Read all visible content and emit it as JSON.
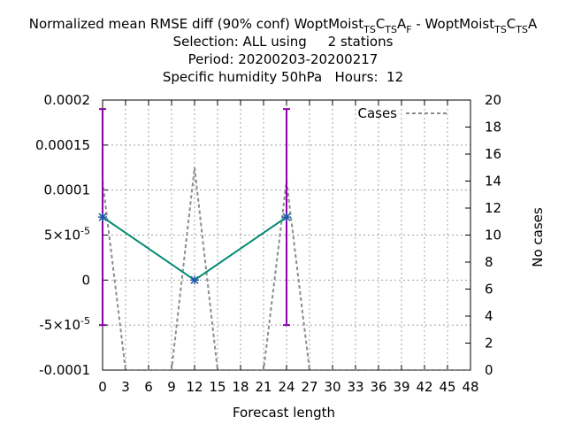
{
  "chart_data": {
    "type": "line",
    "title_lines": [
      "Normalized mean RMSE diff (90% conf) WoptMoist_TSC_TSA_F - WoptMoist_TSC_TSA",
      "Selection: ALL using     2 stations",
      "Period: 20200203-20200217",
      "Specific humidity 50hPa   Hours:  12"
    ],
    "title": {
      "prefix": "Normalized mean RMSE diff (90% conf) WoptMoist",
      "a_sub1": "T",
      "a_sub2": "S",
      "a_c": "C",
      "a_sub3": "T",
      "a_sub4": "S",
      "a_a": "A",
      "a_sub5": "F",
      "mid": " - WoptMoist",
      "b_sub1": "T",
      "b_sub2": "S",
      "b_c": "C",
      "b_sub3": "T",
      "b_sub4": "S",
      "b_a": "A",
      "line2": "Selection: ALL using     2 stations",
      "line3": "Period: 20200203-20200217",
      "line4": "Specific humidity 50hPa   Hours:  12"
    },
    "xlabel": "Forecast length",
    "ylabel_right": "No cases",
    "xlim": [
      0,
      48
    ],
    "ylim": [
      -0.0001,
      0.0002
    ],
    "y2lim": [
      0,
      20
    ],
    "x_ticks": [
      0,
      3,
      6,
      9,
      12,
      15,
      18,
      21,
      24,
      27,
      30,
      33,
      36,
      39,
      42,
      45,
      48
    ],
    "x_tick_labels": [
      "0",
      "3",
      "6",
      "9",
      "12",
      "15",
      "18",
      "21",
      "24",
      "27",
      "30",
      "33",
      "36",
      "39",
      "42",
      "45",
      "48"
    ],
    "y_ticks": [
      -0.0001,
      -5e-05,
      0,
      5e-05,
      0.0001,
      0.00015,
      0.0002
    ],
    "y_tick_labels": [
      {
        "text": "-0.0001"
      },
      {
        "text": "-5×10",
        "sup": "-5"
      },
      {
        "text": "0"
      },
      {
        "text": "5×10",
        "sup": "-5"
      },
      {
        "text": "0.0001"
      },
      {
        "text": "0.00015"
      },
      {
        "text": "0.0002"
      }
    ],
    "y2_ticks": [
      0,
      2,
      4,
      6,
      8,
      10,
      12,
      14,
      16,
      18,
      20
    ],
    "y2_tick_labels": [
      "0",
      "2",
      "4",
      "6",
      "8",
      "10",
      "12",
      "14",
      "16",
      "18",
      "20"
    ],
    "grid": true,
    "legend_position": "top-right",
    "series": [
      {
        "name": "RMSE diff",
        "x": [
          0,
          12,
          24
        ],
        "y": [
          7e-05,
          0.0,
          7e-05
        ],
        "error_low": [
          -5e-05,
          0.0,
          -5e-05
        ],
        "error_high": [
          0.00019,
          0.0,
          0.00019
        ],
        "color": "#008b72",
        "error_color": "#8b00a6"
      },
      {
        "name": "Cases",
        "axis": "y2",
        "x": [
          0,
          3,
          6,
          9,
          12,
          15,
          18,
          21,
          24,
          27,
          30,
          33,
          36,
          39,
          42,
          45,
          48
        ],
        "y": [
          14,
          0,
          0,
          0,
          15,
          0,
          0,
          0,
          14,
          0,
          0,
          0,
          0,
          0,
          0,
          0,
          0
        ],
        "color": "#8c8c8c",
        "dashed": true
      }
    ],
    "legend": [
      {
        "label": "Cases",
        "style": "dashed",
        "color": "#8c8c8c"
      }
    ]
  }
}
